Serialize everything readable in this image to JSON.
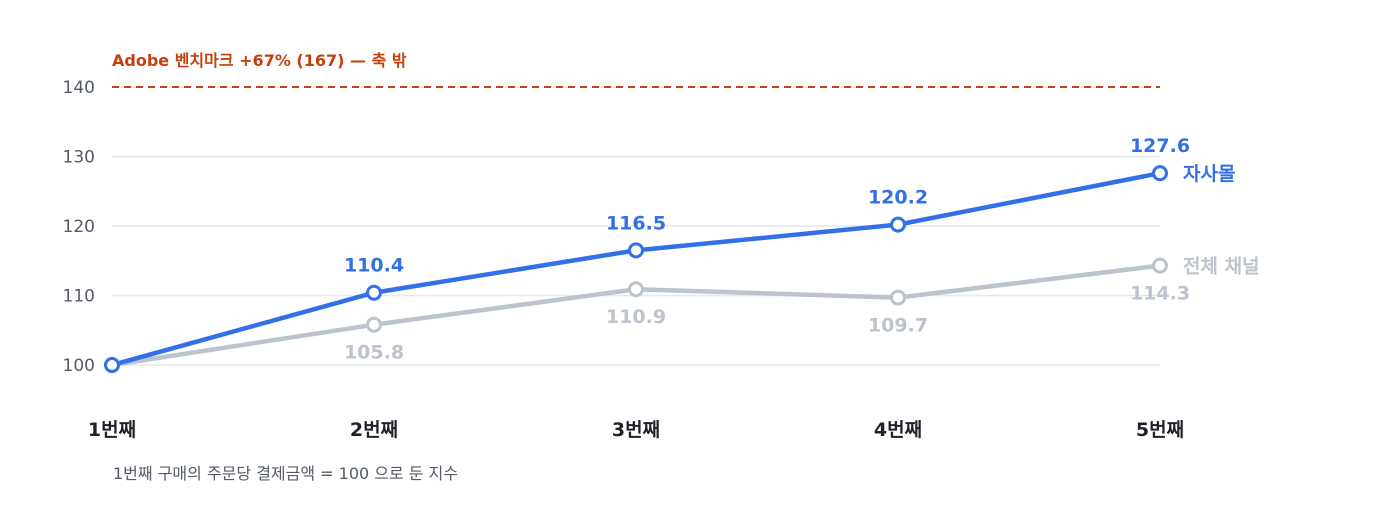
{
  "chart_data": {
    "type": "line",
    "categories": [
      "1번째",
      "2번째",
      "3번째",
      "4번째",
      "5번째"
    ],
    "ylim": [
      100,
      140
    ],
    "yticks": [
      100,
      110,
      120,
      130,
      140
    ],
    "grid": true,
    "series": [
      {
        "name": "자사몰",
        "values": [
          100,
          110.4,
          116.5,
          120.2,
          127.6
        ],
        "labels": [
          "",
          "110.4",
          "116.5",
          "120.2",
          "127.6"
        ],
        "color": "#3370e8",
        "label_position": "above"
      },
      {
        "name": "전체 채널",
        "values": [
          100,
          105.8,
          110.9,
          109.7,
          114.3
        ],
        "labels": [
          "",
          "105.8",
          "110.9",
          "109.7",
          "114.3"
        ],
        "color": "#bcc3cc",
        "label_position": "below"
      }
    ],
    "benchmark": {
      "value": 140,
      "label": "Adobe 벤치마크 +67% (167) — 축 밖",
      "color": "#c4410f"
    },
    "note": "1번째 구매의 주문당 결제금액 = 100 으로 둔 지수"
  }
}
